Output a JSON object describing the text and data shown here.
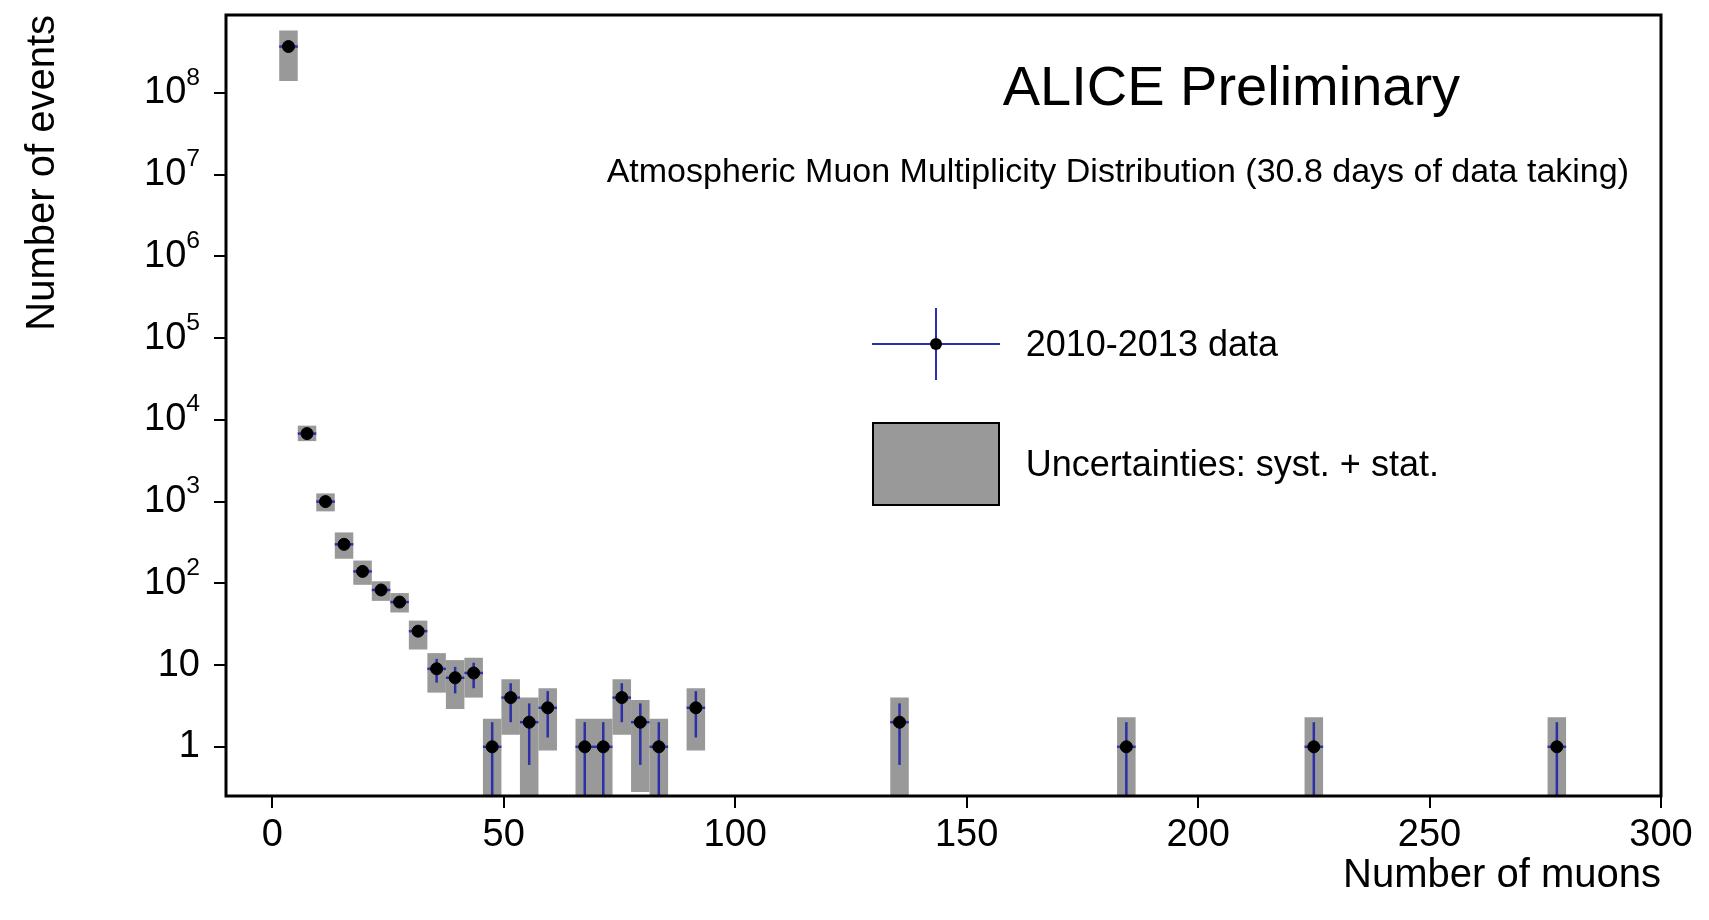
{
  "chart_data": {
    "type": "scatter",
    "title": "ALICE Preliminary",
    "subtitle": "Atmospheric Muon Multiplicity Distribution (30.8 days of data taking)",
    "xlabel": "Number of muons",
    "ylabel": "Number of events",
    "x": [
      3.5,
      7.5,
      11.5,
      15.5,
      19.5,
      23.5,
      27.5,
      31.5,
      35.5,
      39.5,
      43.5,
      47.5,
      51.5,
      55.5,
      59.5,
      67.5,
      71.5,
      75.5,
      79.5,
      83.5,
      91.5,
      135.5,
      184.5,
      225,
      277.5
    ],
    "series": [
      {
        "name": "2010-2013 data",
        "color": "#000000",
        "values": [
          370000000,
          6800,
          1000,
          300,
          140,
          83,
          59,
          26,
          9,
          7,
          8,
          1,
          4,
          2,
          3,
          1,
          1,
          4,
          2,
          1,
          3,
          2,
          1,
          1,
          1
        ],
        "xerrors": [
          2,
          2,
          2,
          2,
          2,
          2,
          2,
          2,
          2,
          2,
          2,
          2,
          2,
          2,
          2,
          2,
          2,
          2,
          2,
          2,
          2,
          2,
          2,
          2,
          2
        ],
        "errors": [
          null,
          null,
          null,
          null,
          null,
          null,
          null,
          null,
          [
            6.1,
            11.9
          ],
          [
            4.5,
            9.5
          ],
          [
            5.2,
            10.7
          ],
          [
            0.25,
            2
          ],
          [
            2,
            6
          ],
          [
            0.6,
            3.4
          ],
          [
            1.3,
            4.8
          ],
          [
            0.25,
            2
          ],
          [
            0.25,
            2
          ],
          [
            2,
            6
          ],
          [
            0.6,
            3.4
          ],
          [
            0.25,
            2
          ],
          [
            1.3,
            4.8
          ],
          [
            0.6,
            3.4
          ],
          [
            0.25,
            2
          ],
          [
            0.25,
            2
          ],
          [
            0.25,
            2
          ]
        ]
      },
      {
        "name": "Uncertainties: syst. + stat.",
        "type": "bar",
        "color": "#999999",
        "base": [
          140000000,
          5500,
          760,
          200,
          96,
          61,
          44,
          15.5,
          4.6,
          2.9,
          4,
          0.25,
          1.4,
          0.25,
          0.9,
          0.25,
          0.25,
          1.4,
          0.28,
          0.25,
          0.9,
          0.25,
          0.25,
          0.25,
          0.25
        ],
        "values": [
          440000000,
          3000,
          500,
          220,
          94,
          45,
          32,
          19.5,
          9.4,
          8.6,
          8.3,
          1.95,
          5.3,
          3.75,
          4.3,
          1.95,
          1.95,
          5.3,
          3.47,
          1.95,
          4.3,
          3.75,
          2.05,
          2.05,
          2.05
        ]
      }
    ],
    "xlim": [
      -10,
      300
    ],
    "xticks": [
      0,
      50,
      100,
      150,
      200,
      250,
      300
    ],
    "ylim": [
      0.25,
      900000000
    ],
    "yticks": [
      1,
      10,
      {
        "value": 100,
        "label": "10$^{2}$"
      },
      {
        "value": 1000,
        "label": "10$^{3}$"
      },
      {
        "value": 10000,
        "label": "10$^{4}$"
      },
      {
        "value": 100000,
        "label": "10$^{5}$"
      },
      {
        "value": 1000000,
        "label": "10$^{6}$"
      },
      {
        "value": 10000000,
        "label": "10$^{7}$"
      },
      {
        "value": 100000000,
        "label": "10$^{8}$"
      }
    ],
    "log": "y",
    "grid": false,
    "legend": "right",
    "marker": "circle"
  }
}
